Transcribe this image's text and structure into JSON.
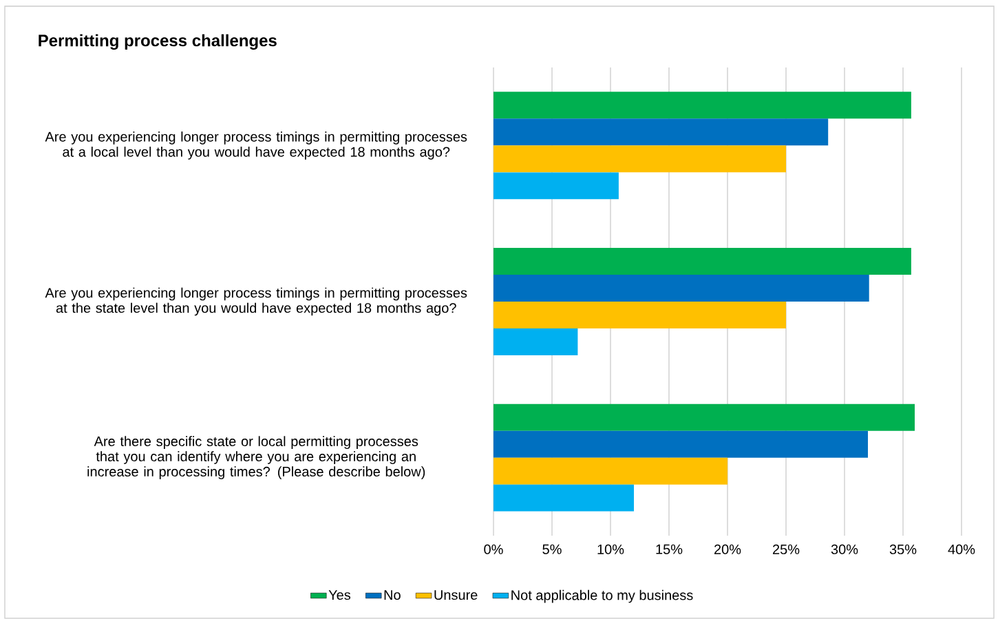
{
  "chart_data": {
    "type": "bar",
    "orientation": "horizontal",
    "title": "Permitting process challenges",
    "categories": [
      "Are you experiencing longer process timings in permitting processes at a local level than you would have expected 18 months ago?",
      "Are you experiencing longer process timings in permitting processes at the state level than you would have expected 18 months ago?",
      "Are there specific state or local permitting processes that you can identify where you are experiencing an increase in processing times? (Please describe below)"
    ],
    "series": [
      {
        "name": "Yes",
        "color": "#00b050",
        "values": [
          35.7,
          35.7,
          36.0
        ]
      },
      {
        "name": "No",
        "color": "#0070c0",
        "values": [
          28.6,
          32.1,
          32.0
        ]
      },
      {
        "name": "Unsure",
        "color": "#ffc000",
        "values": [
          25.0,
          25.0,
          20.0
        ]
      },
      {
        "name": "Not applicable to my business",
        "color": "#00b0f0",
        "values": [
          10.7,
          7.2,
          12.0
        ]
      }
    ],
    "xlim": [
      0,
      40
    ],
    "xticks": [
      {
        "value": 0,
        "label": "0%"
      },
      {
        "value": 5,
        "label": "5%"
      },
      {
        "value": 10,
        "label": "10%"
      },
      {
        "value": 15,
        "label": "15%"
      },
      {
        "value": 20,
        "label": "20%"
      },
      {
        "value": 25,
        "label": "25%"
      },
      {
        "value": 30,
        "label": "30%"
      },
      {
        "value": 35,
        "label": "35%"
      },
      {
        "value": 40,
        "label": "40%"
      }
    ],
    "grid": "x",
    "legend": "bottom"
  }
}
